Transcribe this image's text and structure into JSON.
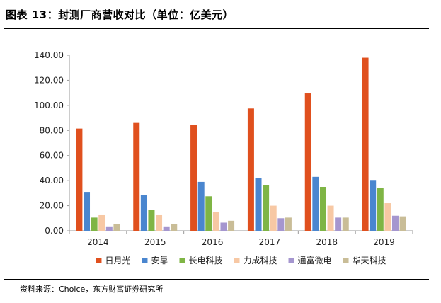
{
  "figure": {
    "title": "图表 13：封测厂商营收对比（单位：亿美元）",
    "source": "资料来源：Choice，东方财富证券研究所"
  },
  "chart_data": {
    "type": "bar",
    "title": "",
    "xlabel": "",
    "ylabel": "",
    "ylim": [
      0,
      140
    ],
    "yticks": [
      "0.00",
      "20.00",
      "40.00",
      "60.00",
      "80.00",
      "100.00",
      "120.00",
      "140.00"
    ],
    "grid": false,
    "legend_position": "bottom",
    "categories": [
      "2014",
      "2015",
      "2016",
      "2017",
      "2018",
      "2019"
    ],
    "series": [
      {
        "name": "日月光",
        "color": "#e0501e",
        "values": [
          81.5,
          86,
          84.5,
          97.5,
          109.5,
          138
        ]
      },
      {
        "name": "安靠",
        "color": "#4a86cf",
        "values": [
          31,
          28.5,
          39,
          42,
          43,
          40.5
        ]
      },
      {
        "name": "长电科技",
        "color": "#7fb545",
        "values": [
          10.5,
          16.5,
          27.5,
          36.5,
          35,
          34
        ]
      },
      {
        "name": "力成科技",
        "color": "#f7c8a4",
        "values": [
          13,
          13,
          15,
          20,
          20,
          22
        ]
      },
      {
        "name": "通富微电",
        "color": "#a596cf",
        "values": [
          3.5,
          3.5,
          6.5,
          10,
          10.5,
          12
        ]
      },
      {
        "name": "华天科技",
        "color": "#c9bd97",
        "values": [
          5.5,
          5.5,
          8,
          10.5,
          10.5,
          11.5
        ]
      }
    ]
  }
}
